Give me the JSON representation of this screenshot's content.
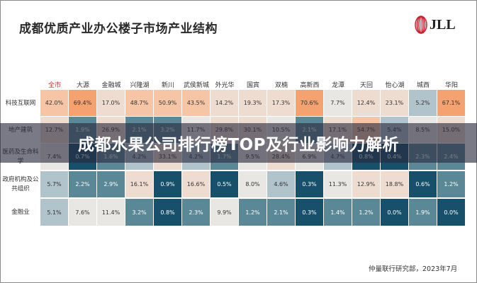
{
  "header": {
    "title": "成都优质产业办公楼子市场产业结构",
    "logo_text": "JLL"
  },
  "overlay_title": "成都水果公司排行榜TOP及行业影响力解析",
  "source": "仲量联行研究部，2023年7月",
  "colors": {
    "highlight_header": "#c0392b",
    "high": "#f4a26f",
    "mid_high": "#f5c5a6",
    "mid": "#efdcd0",
    "neutral": "#e9e7e4",
    "low": "#b1c3cb",
    "lower": "#5b8897",
    "lowest": "#17506a"
  },
  "chart_data": {
    "type": "heatmap",
    "title": "成都优质产业办公楼子市场产业结构",
    "columns": [
      "全市",
      "大源",
      "金融城",
      "兴隆湖",
      "新川",
      "武侯新城",
      "外光华",
      "国宾",
      "双楠",
      "高新西",
      "龙潭",
      "天回",
      "怡心湖",
      "城西",
      "华阳"
    ],
    "rows": [
      {
        "label": "科技互联网",
        "values": [
          "42.0%",
          "69.4%",
          "17.0%",
          "48.7%",
          "50.9%",
          "43.5%",
          "14.2%",
          "19.3%",
          "17.3%",
          "70.6%",
          "7.7%",
          "12.4%",
          "23.1%",
          "5.2%",
          "67.1%"
        ]
      },
      {
        "label": "地产建筑",
        "values": [
          "12.7%",
          "1.9%",
          "26.9%",
          "2.1%",
          "3.2%",
          "11.7%",
          "29.8%",
          "30.1%",
          "10.5%",
          "2.1%",
          "17.1%",
          "54.7%",
          "5.4%",
          "8.5%",
          "15.0%"
        ]
      },
      {
        "label": "医药及生命科学",
        "values": [
          "7.4%",
          "0.7%",
          "1.6%",
          "4.2%",
          "33.1%",
          "4.2%",
          "1.7%",
          "9.5%",
          "28.4%",
          "6.9%",
          "4.7%",
          "0.8%",
          "0.4%",
          "2.3%",
          "2.4%"
        ]
      },
      {
        "label": "政府机构及公共组织",
        "values": [
          "5.7%",
          "2.2%",
          "2.9%",
          "16.1%",
          "0.9%",
          "16.6%",
          "0.5%",
          "8.0%",
          "4.6%",
          "0.3%",
          "11.3%",
          "12.9%",
          "18.8%",
          "0.6%",
          "1.2%"
        ]
      },
      {
        "label": "金融业",
        "values": [
          "5.1%",
          "7.6%",
          "11.4%",
          "3.2%",
          "0.8%",
          "2.3%",
          "9.9%",
          "1.2%",
          "2.1%",
          "0.3%",
          "1.4%",
          "1.2%",
          "0.0%",
          "1.9%",
          "0.0%"
        ]
      }
    ]
  }
}
